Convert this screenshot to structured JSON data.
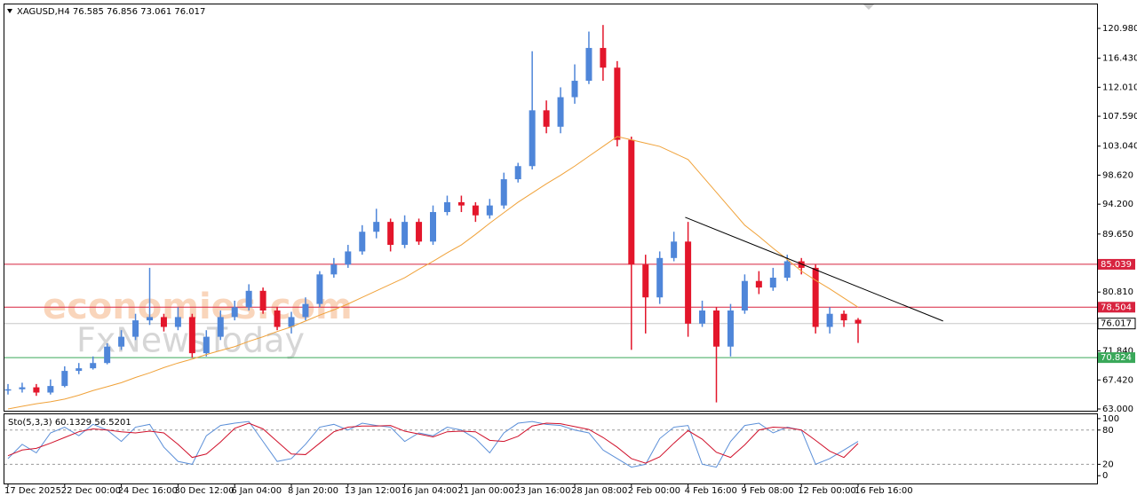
{
  "chart_data": {
    "type": "candlestick",
    "title": "XAGUSD,H4 76.585 76.856 73.061 76.017",
    "categories": [
      "17 Dec 2025",
      null,
      null,
      null,
      "22 Dec 00:00",
      null,
      null,
      null,
      "24 Dec 16:00",
      null,
      null,
      null,
      "30 Dec 12:00",
      null,
      null,
      null,
      "6 Jan 04:00",
      null,
      null,
      null,
      "8 Jan 20:00",
      null,
      null,
      null,
      "13 Jan 12:00",
      null,
      null,
      null,
      "16 Jan 04:00",
      null,
      null,
      null,
      "21 Jan 00:00",
      null,
      null,
      null,
      "23 Jan 16:00",
      null,
      null,
      null,
      "28 Jan 08:00",
      null,
      null,
      null,
      "2 Feb 00:00",
      null,
      null,
      null,
      "4 Feb 16:00",
      null,
      null,
      null,
      "9 Feb 08:00",
      null,
      null,
      null,
      "12 Feb 00:00",
      null,
      null,
      null,
      "16 Feb 16:00"
    ],
    "open": [
      65.8,
      66.0,
      66.3,
      65.5,
      66.5,
      68.8,
      69.2,
      70.0,
      72.5,
      74.0,
      76.5,
      77.0,
      75.5,
      77.0,
      71.5,
      74.0,
      77.0,
      78.5,
      81.0,
      78.0,
      75.5,
      77.0,
      79.0,
      83.5,
      85.0,
      87.0,
      90.0,
      91.5,
      88.0,
      91.5,
      88.5,
      93.0,
      94.5,
      94.0,
      92.5,
      94.0,
      98.0,
      100.0,
      108.5,
      106.0,
      110.5,
      113.0,
      118.0,
      115.0,
      104.0,
      85.0,
      80.0,
      86.0,
      88.5,
      76.0,
      78.0,
      72.5,
      78.0,
      82.5,
      81.5,
      83.0,
      85.5,
      84.5,
      75.5,
      77.5,
      76.585
    ],
    "high": [
      66.8,
      67.0,
      66.8,
      67.5,
      69.5,
      70.0,
      71.0,
      73.0,
      75.0,
      77.5,
      84.5,
      77.5,
      78.5,
      77.5,
      75.0,
      78.0,
      79.5,
      82.0,
      81.5,
      78.5,
      77.8,
      80.0,
      84.0,
      86.0,
      88.0,
      91.0,
      93.5,
      92.0,
      92.5,
      92.0,
      94.0,
      95.5,
      95.5,
      94.5,
      95.0,
      99.0,
      100.5,
      117.5,
      110.0,
      112.0,
      115.5,
      120.5,
      121.5,
      116.0,
      104.5,
      86.5,
      87.0,
      90.0,
      91.5,
      79.5,
      78.5,
      79.0,
      83.5,
      84.0,
      84.5,
      86.5,
      86.0,
      85.0,
      78.5,
      78.0,
      76.856
    ],
    "low": [
      65.2,
      65.5,
      65.0,
      65.2,
      66.3,
      68.3,
      69.0,
      69.8,
      72.0,
      73.5,
      75.8,
      74.8,
      75.0,
      70.8,
      71.0,
      73.5,
      76.5,
      78.0,
      77.5,
      75.0,
      74.5,
      76.5,
      78.5,
      83.0,
      84.5,
      86.5,
      89.0,
      87.0,
      87.5,
      88.0,
      88.0,
      92.5,
      93.0,
      91.5,
      92.0,
      93.5,
      97.5,
      99.5,
      105.0,
      105.0,
      109.5,
      112.5,
      113.0,
      103.0,
      72.0,
      74.5,
      79.0,
      85.5,
      74.0,
      75.5,
      64.0,
      71.0,
      77.5,
      80.5,
      81.0,
      82.5,
      83.5,
      74.5,
      74.5,
      75.5,
      73.061
    ],
    "close": [
      66.0,
      66.3,
      65.5,
      66.5,
      68.8,
      69.2,
      70.0,
      72.5,
      74.0,
      76.5,
      77.0,
      75.5,
      77.0,
      71.5,
      74.0,
      77.0,
      78.5,
      81.0,
      78.0,
      75.5,
      77.0,
      79.0,
      83.5,
      85.0,
      87.0,
      90.0,
      91.5,
      88.0,
      91.5,
      88.5,
      93.0,
      94.5,
      94.0,
      92.5,
      94.0,
      98.0,
      100.0,
      108.5,
      106.0,
      110.5,
      113.0,
      118.0,
      115.0,
      104.0,
      85.0,
      80.0,
      86.0,
      88.5,
      76.0,
      78.0,
      72.5,
      78.0,
      82.5,
      81.5,
      83.0,
      85.5,
      84.5,
      75.5,
      77.5,
      76.5,
      76.017
    ],
    "up_color": "#4f86d9",
    "down_color": "#e3162b",
    "ma": {
      "color": "#f0a23a",
      "values": [
        63.0,
        63.4,
        63.8,
        64.1,
        64.5,
        65.1,
        65.8,
        66.4,
        67.0,
        67.8,
        68.5,
        69.3,
        70.0,
        70.6,
        71.3,
        71.9,
        72.5,
        73.3,
        74.0,
        74.8,
        75.5,
        76.4,
        77.3,
        78.1,
        79.0,
        80.0,
        81.0,
        82.0,
        83.0,
        84.3,
        85.5,
        86.8,
        88.0,
        89.6,
        91.3,
        92.9,
        94.5,
        95.9,
        97.3,
        98.6,
        100.0,
        101.5,
        103.0,
        104.5,
        104.0,
        103.5,
        103.0,
        102.0,
        101.0,
        98.5,
        96.0,
        93.5,
        91.0,
        89.3,
        87.5,
        85.8,
        84.0,
        82.6,
        81.3,
        79.9,
        78.5
      ]
    },
    "ylim": [
      62.73,
      124.63
    ],
    "yticks": [
      {
        "value": 120.98,
        "label": "120.980"
      },
      {
        "value": 116.43,
        "label": "116.430"
      },
      {
        "value": 112.01,
        "label": "112.010"
      },
      {
        "value": 107.59,
        "label": "107.590"
      },
      {
        "value": 103.04,
        "label": "103.040"
      },
      {
        "value": 98.62,
        "label": "98.620"
      },
      {
        "value": 94.2,
        "label": "94.200"
      },
      {
        "value": 89.65,
        "label": "89.650"
      },
      {
        "value": 80.81,
        "label": "80.810"
      },
      {
        "value": 71.84,
        "label": "71.840"
      },
      {
        "value": 67.42,
        "label": "67.420"
      },
      {
        "value": 63.0,
        "label": "63.000"
      }
    ],
    "levels": [
      {
        "value": 85.039,
        "label": "85.039",
        "color": "#d8233f",
        "label_color": "#ffffff"
      },
      {
        "value": 78.504,
        "label": "78.504",
        "color": "#d8233f",
        "label_color": "#ffffff"
      },
      {
        "value": 76.017,
        "label": "76.017",
        "color": "#c8c8c8",
        "label_color": "#000000"
      },
      {
        "value": 70.824,
        "label": "70.824",
        "color": "#3aa85a",
        "label_color": "#ffffff"
      }
    ],
    "trendline": {
      "x": [
        47.8,
        66
      ],
      "y": [
        92.2,
        76.4
      ],
      "color": "#000000"
    },
    "watermark": [
      "economies.com",
      "FxNewsToday"
    ],
    "oscillator": {
      "title": "Sto(5,3,3) 60.1329 56.5201",
      "ylim": [
        -13.6,
        107.6
      ],
      "yticks": [
        0,
        20,
        80,
        100
      ],
      "levels": [
        20,
        80
      ],
      "series": [
        {
          "color": "#5b8fd8",
          "values": [
            30,
            55,
            40,
            75,
            85,
            70,
            90,
            80,
            60,
            85,
            90,
            50,
            25,
            20,
            70,
            88,
            92,
            95,
            60,
            25,
            30,
            55,
            85,
            90,
            80,
            92,
            88,
            85,
            60,
            75,
            70,
            85,
            80,
            65,
            40,
            75,
            92,
            95,
            90,
            88,
            80,
            75,
            45,
            30,
            15,
            20,
            65,
            85,
            88,
            20,
            15,
            60,
            88,
            92,
            75,
            85,
            80,
            20,
            30,
            45,
            60.1329
          ]
        },
        {
          "color": "#d0102a",
          "values": [
            35,
            45,
            48,
            57,
            67,
            77,
            82,
            80,
            77,
            75,
            78,
            75,
            55,
            32,
            38,
            59,
            83,
            92,
            82,
            60,
            38,
            37,
            57,
            77,
            85,
            87,
            87,
            88,
            78,
            73,
            68,
            77,
            78,
            77,
            62,
            60,
            69,
            87,
            92,
            91,
            86,
            81,
            67,
            50,
            30,
            22,
            33,
            57,
            79,
            64,
            41,
            32,
            54,
            80,
            85,
            84,
            80,
            62,
            43,
            32,
            56.5201
          ]
        }
      ]
    }
  }
}
